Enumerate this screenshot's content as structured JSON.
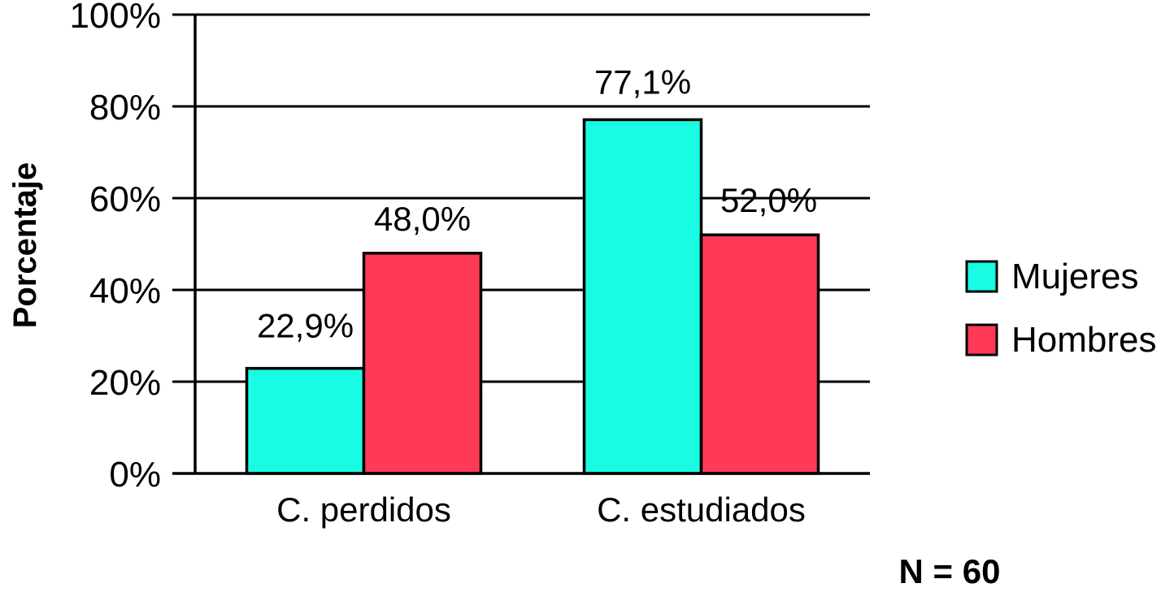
{
  "chart_data": {
    "type": "bar",
    "ylabel": "Porcentaje",
    "ylim": [
      0,
      100
    ],
    "yticks": [
      "0%",
      "20%",
      "40%",
      "60%",
      "80%",
      "100%"
    ],
    "ytick_values": [
      0,
      20,
      40,
      60,
      80,
      100
    ],
    "grid": true,
    "legend_position": "right",
    "categories": [
      "C. perdidos",
      "C. estudiados"
    ],
    "series": [
      {
        "name": "Mujeres",
        "values": [
          22.9,
          77.1
        ],
        "labels": [
          "22,9%",
          "77,1%"
        ],
        "color": "#19fbe3"
      },
      {
        "name": "Hombres",
        "values": [
          48.0,
          52.0
        ],
        "labels": [
          "48,0%",
          "52,0%"
        ],
        "color": "#fe3a56"
      }
    ],
    "annotation": "N = 60"
  }
}
